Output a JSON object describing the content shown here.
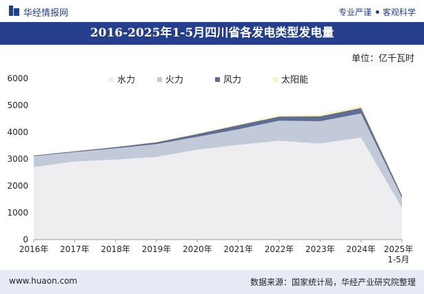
{
  "header": {
    "brand": "华经情报网",
    "tagline_left": "专业严谨",
    "tagline_right": "客观科学"
  },
  "title": "2016-2025年1-5月四川省各发电类型发电量",
  "unit": "单位：亿千瓦时",
  "footer": {
    "website": "www.huaon.com",
    "source": "数据来源：国家统计局，华经产业研究院整理"
  },
  "colors": {
    "banner": "#263f8c",
    "hydro": "#eeeef1",
    "thermal": "#c2c9d9",
    "wind": "#5e6d91",
    "solar": "#fbf1cb"
  },
  "chart_data": {
    "type": "area",
    "stacked": true,
    "title": "2016-2025年1-5月四川省各发电类型发电量",
    "ylabel": "亿千瓦时",
    "ylim": [
      0,
      6000
    ],
    "yticks": [
      "0",
      "1000",
      "2000",
      "3000",
      "4000",
      "5000",
      "6000"
    ],
    "categories": [
      "2016年",
      "2017年",
      "2018年",
      "2019年",
      "2020年",
      "2021年",
      "2022年",
      "2023年",
      "2024年",
      "2025年1-5月"
    ],
    "legend_position": "top",
    "series": [
      {
        "name": "水力",
        "values": [
          2700,
          2910,
          2980,
          3080,
          3350,
          3530,
          3680,
          3580,
          3800,
          1180
        ]
      },
      {
        "name": "火力",
        "values": [
          410,
          350,
          420,
          480,
          480,
          580,
          750,
          830,
          900,
          380
        ]
      },
      {
        "name": "风力",
        "values": [
          20,
          30,
          40,
          60,
          100,
          150,
          150,
          180,
          200,
          80
        ]
      },
      {
        "name": "太阳能",
        "values": [
          10,
          10,
          20,
          20,
          30,
          40,
          50,
          70,
          100,
          20
        ]
      }
    ]
  }
}
